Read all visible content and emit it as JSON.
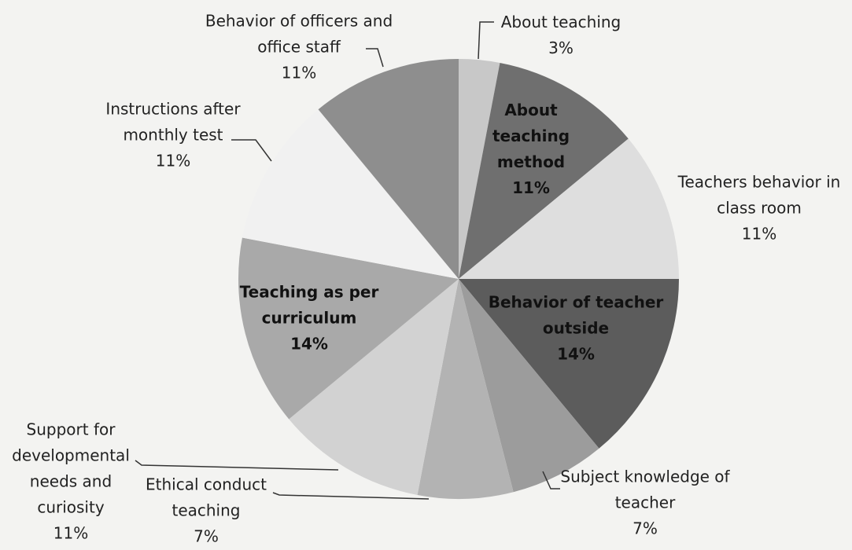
{
  "chart_data": {
    "type": "pie",
    "categories": [
      "About teaching",
      "About teaching method",
      "Teachers behavior in class room",
      "Behavior of teacher outside",
      "Subject knowledge of teacher",
      "Ethical conduct teaching",
      "Support for developmental needs and curiosity",
      "Teaching as per curriculum",
      "Instructions after monthly test",
      "Behavior of officers and office staff"
    ],
    "values": [
      3,
      11,
      11,
      14,
      7,
      7,
      11,
      14,
      11,
      11
    ],
    "value_labels": [
      "3%",
      "11%",
      "11%",
      "14%",
      "7%",
      "7%",
      "11%",
      "14%",
      "11%",
      "11%"
    ],
    "colors": [
      "#c8c8c8",
      "#6f6f6f",
      "#dedede",
      "#5c5c5c",
      "#9c9c9c",
      "#b3b3b3",
      "#d2d2d2",
      "#a9a9a9",
      "#f1f1f1",
      "#8e8e8e"
    ]
  }
}
